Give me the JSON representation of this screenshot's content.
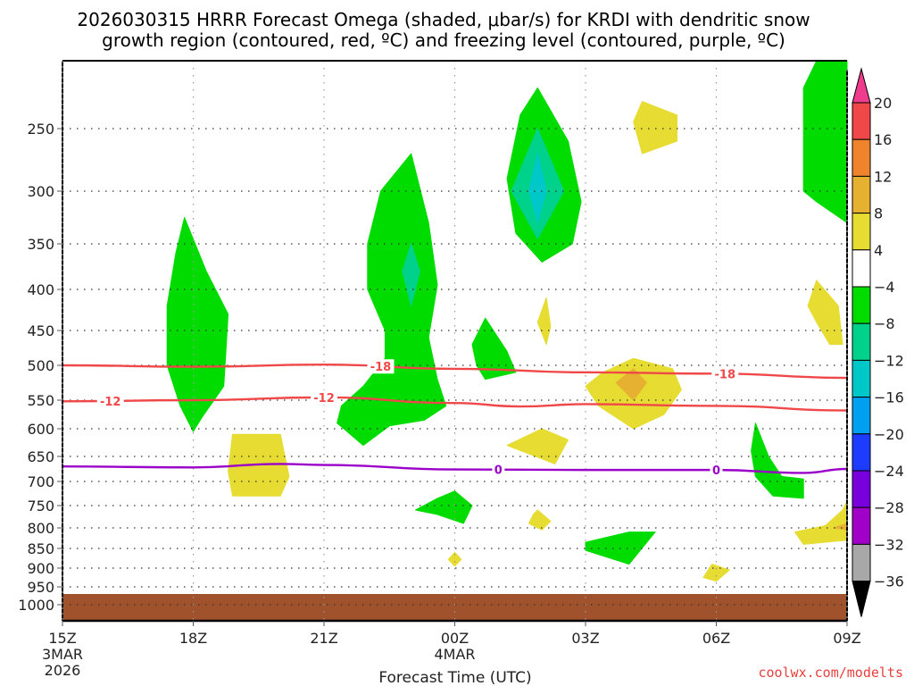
{
  "chart_data": {
    "type": "heatmap",
    "title_line1": "2026030315 HRRR Forecast Omega (shaded, μbar/s) for KRDI with dendritic snow",
    "title_line2": "growth region (contoured, red, ºC) and freezing level (contoured, purple, ºC)",
    "xlabel": "Forecast Time (UTC)",
    "ylabel": "",
    "credit": "coolwx.com/modelts",
    "x_ticks": [
      {
        "hour": 0,
        "label": "15Z",
        "sub1": "3MAR",
        "sub2": "2026"
      },
      {
        "hour": 3,
        "label": "18Z",
        "sub1": "",
        "sub2": ""
      },
      {
        "hour": 6,
        "label": "21Z",
        "sub1": "",
        "sub2": ""
      },
      {
        "hour": 9,
        "label": "00Z",
        "sub1": "4MAR",
        "sub2": ""
      },
      {
        "hour": 12,
        "label": "03Z",
        "sub1": "",
        "sub2": ""
      },
      {
        "hour": 15,
        "label": "06Z",
        "sub1": "",
        "sub2": ""
      },
      {
        "hour": 18,
        "label": "09Z",
        "sub1": "",
        "sub2": ""
      }
    ],
    "xlim_hours": [
      0,
      18
    ],
    "y_ticks": [
      "250",
      "300",
      "350",
      "400",
      "450",
      "500",
      "550",
      "600",
      "650",
      "700",
      "750",
      "800",
      "850",
      "900",
      "950",
      "1000"
    ],
    "ylim_mb": [
      200,
      1030
    ],
    "grid": true,
    "colorbar": {
      "units": "μbar/s",
      "placement": "right",
      "levels": [
        20,
        16,
        12,
        8,
        4,
        -4,
        -8,
        -12,
        -16,
        -20,
        -24,
        -28,
        -32,
        -36
      ],
      "colors": [
        "#f03c8c",
        "#f04848",
        "#f0842c",
        "#e6b030",
        "#e6dc32",
        "#ffffff",
        "#00dc00",
        "#00d28c",
        "#00c8c8",
        "#00a0f0",
        "#1e3cff",
        "#7800dc",
        "#a000c8",
        "#a8a8a8",
        "#000000"
      ]
    },
    "contours": [
      {
        "name": "dendritic -18C",
        "color": "#f04848",
        "label": "-18",
        "points_hour_mb": [
          [
            0,
            500
          ],
          [
            3,
            502
          ],
          [
            6,
            499
          ],
          [
            9,
            505
          ],
          [
            12,
            510
          ],
          [
            15,
            512
          ],
          [
            18,
            518
          ]
        ],
        "label_hours": [
          7.3,
          15.2
        ]
      },
      {
        "name": "dendritic -12C",
        "color": "#f04848",
        "label": "-12",
        "points_hour_mb": [
          [
            0,
            552
          ],
          [
            3,
            550
          ],
          [
            6,
            546
          ],
          [
            9,
            555
          ],
          [
            10.5,
            561
          ],
          [
            12,
            557
          ],
          [
            15,
            560
          ],
          [
            18,
            568
          ]
        ],
        "label_hours": [
          1.1,
          6.0
        ]
      },
      {
        "name": "freezing level 0C",
        "color": "#9a00c8",
        "label": "0",
        "points_hour_mb": [
          [
            0,
            670
          ],
          [
            3,
            672
          ],
          [
            5,
            665
          ],
          [
            6,
            667
          ],
          [
            9,
            676
          ],
          [
            12,
            677
          ],
          [
            15,
            677
          ],
          [
            17,
            683
          ],
          [
            18,
            675
          ]
        ],
        "label_hours": [
          10.0,
          15.0
        ]
      }
    ],
    "shaded_regions": [
      {
        "value_class": "-4 to -8",
        "color": "#00dc00",
        "points_hour_mb": [
          [
            2.8,
            325
          ],
          [
            3.3,
            380
          ],
          [
            3.8,
            430
          ],
          [
            3.7,
            530
          ],
          [
            3.2,
            580
          ],
          [
            3.0,
            605
          ],
          [
            2.7,
            560
          ],
          [
            2.4,
            500
          ],
          [
            2.4,
            420
          ],
          [
            2.6,
            360
          ]
        ]
      },
      {
        "value_class": "-4 to -8",
        "color": "#00dc00",
        "points_hour_mb": [
          [
            8.0,
            270
          ],
          [
            8.4,
            330
          ],
          [
            8.6,
            395
          ],
          [
            8.4,
            460
          ],
          [
            8.6,
            520
          ],
          [
            8.8,
            560
          ],
          [
            8.3,
            585
          ],
          [
            7.5,
            595
          ],
          [
            6.9,
            630
          ],
          [
            6.3,
            590
          ],
          [
            6.4,
            560
          ],
          [
            6.9,
            530
          ],
          [
            7.4,
            490
          ],
          [
            7.4,
            450
          ],
          [
            7.0,
            400
          ],
          [
            7.0,
            350
          ],
          [
            7.3,
            300
          ]
        ]
      },
      {
        "value_class": "-8 to -12",
        "color": "#00d28c",
        "points_hour_mb": [
          [
            8.0,
            350
          ],
          [
            8.2,
            380
          ],
          [
            8.0,
            420
          ],
          [
            7.8,
            380
          ]
        ]
      },
      {
        "value_class": "-4 to -8",
        "color": "#00dc00",
        "points_hour_mb": [
          [
            10.9,
            220
          ],
          [
            11.6,
            260
          ],
          [
            11.9,
            310
          ],
          [
            11.7,
            350
          ],
          [
            11.0,
            370
          ],
          [
            10.4,
            340
          ],
          [
            10.2,
            290
          ],
          [
            10.5,
            240
          ]
        ]
      },
      {
        "value_class": "-8 to -12",
        "color": "#00d28c",
        "points_hour_mb": [
          [
            10.9,
            250
          ],
          [
            11.5,
            300
          ],
          [
            10.9,
            345
          ],
          [
            10.3,
            300
          ]
        ]
      },
      {
        "value_class": "-12 to -16",
        "color": "#00c8c8",
        "points_hour_mb": [
          [
            10.9,
            270
          ],
          [
            11.1,
            300
          ],
          [
            10.9,
            330
          ],
          [
            10.7,
            300
          ]
        ]
      },
      {
        "value_class": "-4 to -8",
        "color": "#00dc00",
        "points_hour_mb": [
          [
            9.7,
            435
          ],
          [
            10.2,
            480
          ],
          [
            10.4,
            510
          ],
          [
            9.7,
            520
          ],
          [
            9.5,
            500
          ],
          [
            9.4,
            470
          ]
        ]
      },
      {
        "value_class": "-4 to -8",
        "color": "#00dc00",
        "points_hour_mb": [
          [
            17.3,
            200
          ],
          [
            18,
            180
          ],
          [
            18,
            330
          ],
          [
            17.3,
            310
          ],
          [
            17.0,
            300
          ],
          [
            17.0,
            220
          ]
        ]
      },
      {
        "value_class": "-4 to -8",
        "color": "#00dc00",
        "points_hour_mb": [
          [
            15.9,
            590
          ],
          [
            16.2,
            650
          ],
          [
            16.5,
            690
          ],
          [
            17.0,
            695
          ],
          [
            17.0,
            735
          ],
          [
            16.3,
            730
          ],
          [
            15.9,
            690
          ],
          [
            15.8,
            640
          ]
        ]
      },
      {
        "value_class": "-4 to -8",
        "color": "#00dc00",
        "points_hour_mb": [
          [
            9.0,
            720
          ],
          [
            9.4,
            750
          ],
          [
            9.2,
            790
          ],
          [
            8.6,
            770
          ],
          [
            8.1,
            760
          ],
          [
            8.6,
            735
          ]
        ]
      },
      {
        "value_class": "-4 to -8",
        "color": "#00dc00",
        "points_hour_mb": [
          [
            12.0,
            835
          ],
          [
            13.0,
            810
          ],
          [
            13.6,
            810
          ],
          [
            13.0,
            890
          ],
          [
            12.0,
            855
          ]
        ]
      },
      {
        "value_class": "4 to 8",
        "color": "#e6dc32",
        "points_hour_mb": [
          [
            3.9,
            610
          ],
          [
            5.0,
            610
          ],
          [
            5.2,
            690
          ],
          [
            5.0,
            730
          ],
          [
            3.9,
            730
          ],
          [
            3.8,
            680
          ]
        ]
      },
      {
        "value_class": "4 to 8",
        "color": "#e6dc32",
        "points_hour_mb": [
          [
            13.3,
            230
          ],
          [
            14.1,
            240
          ],
          [
            14.1,
            260
          ],
          [
            13.3,
            270
          ],
          [
            13.1,
            245
          ]
        ]
      },
      {
        "value_class": "4 to 8",
        "color": "#e6dc32",
        "points_hour_mb": [
          [
            11.1,
            410
          ],
          [
            11.2,
            445
          ],
          [
            11.1,
            470
          ],
          [
            10.9,
            440
          ]
        ]
      },
      {
        "value_class": "4 to 8",
        "color": "#e6dc32",
        "points_hour_mb": [
          [
            13.1,
            490
          ],
          [
            14.0,
            505
          ],
          [
            14.2,
            535
          ],
          [
            13.8,
            575
          ],
          [
            13.1,
            600
          ],
          [
            12.3,
            560
          ],
          [
            12.0,
            530
          ],
          [
            12.4,
            510
          ]
        ]
      },
      {
        "value_class": "8 to 12",
        "color": "#e6b030",
        "points_hour_mb": [
          [
            13.1,
            505
          ],
          [
            13.4,
            525
          ],
          [
            13.1,
            550
          ],
          [
            12.7,
            525
          ]
        ]
      },
      {
        "value_class": "4 to 8",
        "color": "#e6dc32",
        "points_hour_mb": [
          [
            11.0,
            600
          ],
          [
            11.6,
            620
          ],
          [
            11.3,
            665
          ],
          [
            10.2,
            630
          ]
        ]
      },
      {
        "value_class": "4 to 8",
        "color": "#e6dc32",
        "points_hour_mb": [
          [
            17.3,
            390
          ],
          [
            17.8,
            420
          ],
          [
            17.9,
            470
          ],
          [
            17.6,
            470
          ],
          [
            17.3,
            440
          ],
          [
            17.1,
            420
          ]
        ]
      },
      {
        "value_class": "4 to 8",
        "color": "#e6dc32",
        "points_hour_mb": [
          [
            18,
            740
          ],
          [
            18,
            830
          ],
          [
            17.0,
            840
          ],
          [
            16.8,
            810
          ],
          [
            17.5,
            795
          ],
          [
            17.9,
            760
          ]
        ]
      },
      {
        "value_class": "8 to 12",
        "color": "#e6b030",
        "points_hour_mb": [
          [
            18,
            790
          ],
          [
            18,
            805
          ],
          [
            17.7,
            800
          ]
        ]
      },
      {
        "value_class": "4 to 8",
        "color": "#e6dc32",
        "points_hour_mb": [
          [
            10.9,
            760
          ],
          [
            11.2,
            785
          ],
          [
            11.0,
            805
          ],
          [
            10.7,
            790
          ],
          [
            10.8,
            770
          ]
        ]
      },
      {
        "value_class": "4 to 8",
        "color": "#e6dc32",
        "points_hour_mb": [
          [
            9.0,
            860
          ],
          [
            9.15,
            878
          ],
          [
            9.0,
            895
          ],
          [
            8.85,
            878
          ]
        ]
      },
      {
        "value_class": "4 to 8",
        "color": "#e6dc32",
        "points_hour_mb": [
          [
            14.9,
            890
          ],
          [
            15.3,
            905
          ],
          [
            15.0,
            935
          ],
          [
            14.7,
            925
          ]
        ]
      }
    ],
    "terrain": {
      "color": "#a0522d",
      "surface_mb": 970
    }
  }
}
